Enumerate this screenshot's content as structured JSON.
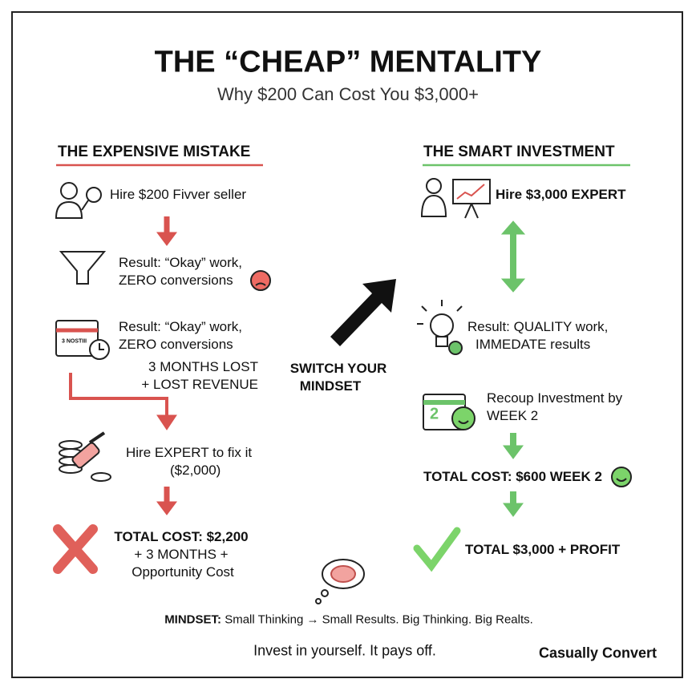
{
  "header": {
    "title": "THE “CHEAP” MENTALITY",
    "subtitle": "Why $200 Can Cost You $3,000+"
  },
  "left": {
    "heading": "THE EXPENSIVE MISTAKE",
    "steps": [
      {
        "lines": [
          "Hire $200 Fivver seller"
        ]
      },
      {
        "lines": [
          "Result: “Okay” work,",
          "ZERO conversions"
        ]
      },
      {
        "lines": [
          "Result: “Okay” work,",
          "ZERO conversions"
        ],
        "icon_label": "3 NOSTIII"
      },
      {
        "lines": [
          "3 MONTHS LOST",
          "+ LOST REVENUE"
        ]
      },
      {
        "lines": [
          "Hire EXPERT to fix it",
          "($2,000)"
        ]
      },
      {
        "lines": [
          "TOTAL COST: $2,200",
          "+ 3 MONTHS +",
          "Opportunity Cost"
        ]
      }
    ]
  },
  "center": {
    "lines": [
      "SWITCH YOUR",
      "MINDSET"
    ]
  },
  "right": {
    "heading": "THE SMART INVESTMENT",
    "steps": [
      {
        "lines": [
          "Hire $3,000 EXPERT"
        ]
      },
      {
        "lines": [
          "Result: QUALITY work,",
          "IMMEDATE results"
        ]
      },
      {
        "lines": [
          "Recoup Investment by",
          "WEEK 2"
        ],
        "icon_label": "2"
      },
      {
        "lines": [
          "TOTAL COST: $600 WEEK 2"
        ]
      },
      {
        "lines": [
          "TOTAL $3,000 + PROFIT"
        ]
      }
    ]
  },
  "footer": {
    "mindset": {
      "label": "MINDSET:",
      "text": "Small Thinking → Small Results. Big Thinking. Big Realts."
    },
    "tagline": "Invest in yourself. It pays off.",
    "brand": "Casually Convert"
  }
}
